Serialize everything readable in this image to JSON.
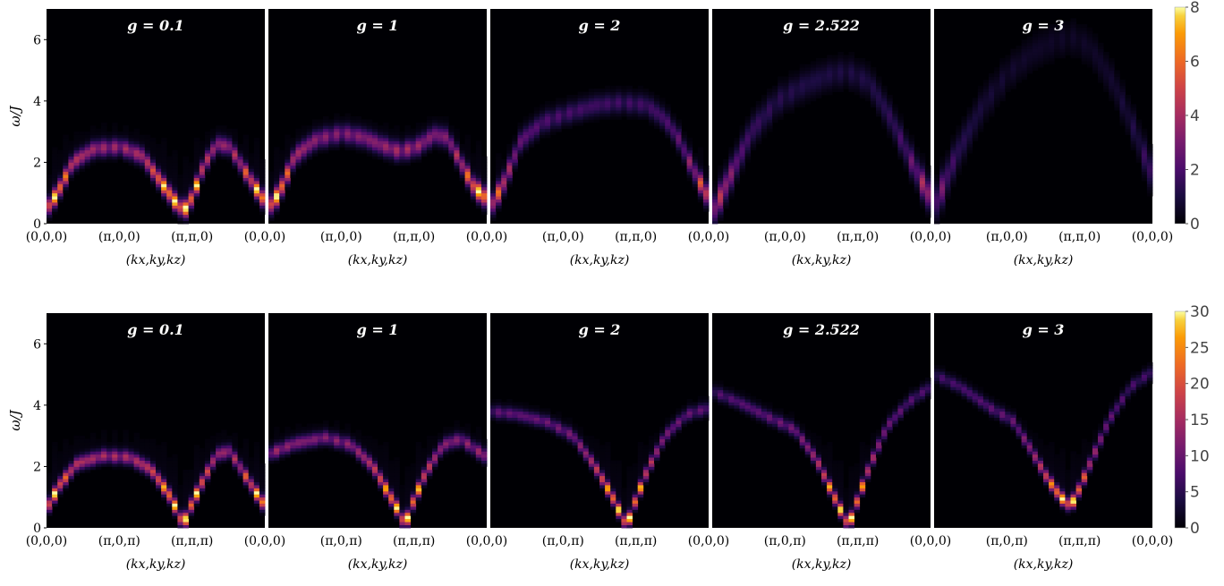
{
  "chart_data": [
    {
      "type": "heatmap",
      "row": "top",
      "ylabel": "ω/J",
      "yticks": [
        "0",
        "2",
        "4",
        "6"
      ],
      "ylim": [
        0,
        7
      ],
      "xlabel": "(kx,ky,kz)",
      "xticks": [
        "(0,0,0)",
        "(π,0,0)",
        "(π,π,0)",
        "(0,0,0)"
      ],
      "colorbar": {
        "ticks": [
          "0",
          "2",
          "4",
          "6",
          "8"
        ],
        "range": [
          0,
          8
        ]
      },
      "panels": [
        {
          "label": "g = 0.1",
          "dispersion": [
            [
              0,
              0.45
            ],
            [
              0.05,
              1.0
            ],
            [
              0.12,
              2.0
            ],
            [
              0.22,
              2.45
            ],
            [
              0.34,
              2.5
            ],
            [
              0.44,
              2.2
            ],
            [
              0.52,
              1.4
            ],
            [
              0.59,
              0.7
            ],
            [
              0.63,
              0.4
            ],
            [
              0.67,
              0.9
            ],
            [
              0.72,
              1.9
            ],
            [
              0.78,
              2.6
            ],
            [
              0.84,
              2.5
            ],
            [
              0.91,
              1.7
            ],
            [
              1.0,
              0.7
            ]
          ],
          "peak_intensity": 8,
          "broadening": 0.18
        },
        {
          "label": "g = 1",
          "dispersion": [
            [
              0,
              0.5
            ],
            [
              0.05,
              1.0
            ],
            [
              0.12,
              2.2
            ],
            [
              0.22,
              2.75
            ],
            [
              0.34,
              2.95
            ],
            [
              0.44,
              2.8
            ],
            [
              0.52,
              2.55
            ],
            [
              0.6,
              2.35
            ],
            [
              0.68,
              2.5
            ],
            [
              0.76,
              2.9
            ],
            [
              0.82,
              2.8
            ],
            [
              0.88,
              2.0
            ],
            [
              0.94,
              1.2
            ],
            [
              1.0,
              0.8
            ]
          ],
          "peak_intensity": 8,
          "broadening": 0.2
        },
        {
          "label": "g = 2",
          "dispersion": [
            [
              0,
              0.5
            ],
            [
              0.06,
              1.3
            ],
            [
              0.14,
              2.7
            ],
            [
              0.24,
              3.3
            ],
            [
              0.36,
              3.6
            ],
            [
              0.48,
              3.85
            ],
            [
              0.6,
              3.95
            ],
            [
              0.72,
              3.85
            ],
            [
              0.8,
              3.4
            ],
            [
              0.86,
              2.8
            ],
            [
              0.92,
              1.9
            ],
            [
              1.0,
              0.8
            ]
          ],
          "peak_intensity": 6,
          "broadening": 0.22
        },
        {
          "label": "g = 2.522",
          "dispersion": [
            [
              0,
              0.3
            ],
            [
              0.08,
              1.5
            ],
            [
              0.18,
              3.0
            ],
            [
              0.3,
              4.0
            ],
            [
              0.42,
              4.5
            ],
            [
              0.54,
              4.85
            ],
            [
              0.62,
              4.95
            ],
            [
              0.72,
              4.6
            ],
            [
              0.82,
              3.4
            ],
            [
              0.9,
              2.2
            ],
            [
              1.0,
              0.8
            ]
          ],
          "peak_intensity": 4.5,
          "broadening": 0.3
        },
        {
          "label": "g = 3",
          "dispersion": [
            [
              0,
              0.5
            ],
            [
              0.1,
              2.2
            ],
            [
              0.22,
              3.8
            ],
            [
              0.34,
              4.9
            ],
            [
              0.46,
              5.6
            ],
            [
              0.56,
              5.95
            ],
            [
              0.64,
              6.05
            ],
            [
              0.72,
              5.7
            ],
            [
              0.82,
              4.6
            ],
            [
              0.92,
              3.0
            ],
            [
              1.0,
              1.5
            ]
          ],
          "peak_intensity": 3,
          "broadening": 0.35
        }
      ]
    },
    {
      "type": "heatmap",
      "row": "bottom",
      "ylabel": "ω/J",
      "yticks": [
        "0",
        "2",
        "4",
        "6"
      ],
      "ylim": [
        0,
        7
      ],
      "xlabel": "(kx,ky,kz)",
      "xticks": [
        "(0,0,0)",
        "(π,0,π)",
        "(π,π,π)",
        "(0,0,0)"
      ],
      "colorbar": {
        "ticks": [
          "0",
          "5",
          "10",
          "15",
          "20",
          "25",
          "30"
        ],
        "range": [
          0,
          30
        ]
      },
      "panels": [
        {
          "label": "g = 0.1",
          "dispersion": [
            [
              0,
              0.6
            ],
            [
              0.06,
              1.4
            ],
            [
              0.14,
              2.1
            ],
            [
              0.26,
              2.35
            ],
            [
              0.38,
              2.3
            ],
            [
              0.48,
              1.9
            ],
            [
              0.56,
              1.1
            ],
            [
              0.6,
              0.55
            ],
            [
              0.625,
              0.05
            ],
            [
              0.66,
              0.7
            ],
            [
              0.72,
              1.6
            ],
            [
              0.78,
              2.4
            ],
            [
              0.84,
              2.5
            ],
            [
              0.92,
              1.6
            ],
            [
              1.0,
              0.7
            ]
          ],
          "peak_intensity": 30,
          "broadening": 0.15
        },
        {
          "label": "g = 1",
          "dispersion": [
            [
              0,
              2.4
            ],
            [
              0.12,
              2.75
            ],
            [
              0.26,
              2.95
            ],
            [
              0.38,
              2.7
            ],
            [
              0.48,
              2.0
            ],
            [
              0.56,
              1.0
            ],
            [
              0.6,
              0.5
            ],
            [
              0.625,
              0.05
            ],
            [
              0.66,
              0.8
            ],
            [
              0.72,
              1.8
            ],
            [
              0.8,
              2.7
            ],
            [
              0.88,
              2.9
            ],
            [
              1.0,
              2.3
            ]
          ],
          "peak_intensity": 30,
          "broadening": 0.15
        },
        {
          "label": "g = 2",
          "dispersion": [
            [
              0,
              3.8
            ],
            [
              0.12,
              3.7
            ],
            [
              0.26,
              3.45
            ],
            [
              0.38,
              3.0
            ],
            [
              0.48,
              2.0
            ],
            [
              0.56,
              1.0
            ],
            [
              0.6,
              0.4
            ],
            [
              0.625,
              0.05
            ],
            [
              0.66,
              0.8
            ],
            [
              0.72,
              1.9
            ],
            [
              0.8,
              3.0
            ],
            [
              0.9,
              3.7
            ],
            [
              1.0,
              3.9
            ]
          ],
          "peak_intensity": 30,
          "broadening": 0.14
        },
        {
          "label": "g = 2.522",
          "dispersion": [
            [
              0,
              4.45
            ],
            [
              0.12,
              4.1
            ],
            [
              0.26,
              3.6
            ],
            [
              0.38,
              3.2
            ],
            [
              0.48,
              2.2
            ],
            [
              0.56,
              1.0
            ],
            [
              0.6,
              0.4
            ],
            [
              0.625,
              0.05
            ],
            [
              0.66,
              0.8
            ],
            [
              0.72,
              2.0
            ],
            [
              0.8,
              3.3
            ],
            [
              0.9,
              4.1
            ],
            [
              1.0,
              4.6
            ]
          ],
          "peak_intensity": 30,
          "broadening": 0.14
        },
        {
          "label": "g = 3",
          "dispersion": [
            [
              0,
              5.0
            ],
            [
              0.12,
              4.6
            ],
            [
              0.26,
              3.9
            ],
            [
              0.36,
              3.5
            ],
            [
              0.44,
              2.6
            ],
            [
              0.52,
              1.6
            ],
            [
              0.58,
              1.0
            ],
            [
              0.625,
              0.7
            ],
            [
              0.66,
              1.2
            ],
            [
              0.72,
              2.2
            ],
            [
              0.8,
              3.5
            ],
            [
              0.9,
              4.6
            ],
            [
              1.0,
              5.1
            ]
          ],
          "peak_intensity": 30,
          "broadening": 0.14
        }
      ]
    }
  ]
}
